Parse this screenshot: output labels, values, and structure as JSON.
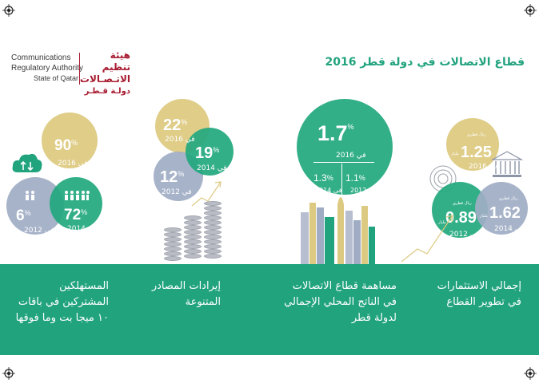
{
  "header": {
    "logo_en_line1": "Communications",
    "logo_en_line2": "Regulatory Authority",
    "logo_en_line3": "State of Qatar",
    "logo_ar_line1": "هيئة تنظيم",
    "logo_ar_line2": "الاتـصـالات",
    "logo_ar_line3": "دولـة قـطـر",
    "title": "قطاع الاتصالات في دولة قطر 2016"
  },
  "colors": {
    "green": "#21a37e",
    "gold": "#ddca82",
    "blue": "#a0acc4",
    "logo_red": "#a7192e"
  },
  "panel_consumers": {
    "icons": [
      "cloud-arrows-icon",
      "people-small-icon",
      "people-large-icon"
    ],
    "circles": [
      {
        "value": "90",
        "unit": "%",
        "year": "في 2016"
      },
      {
        "value": "6",
        "unit": "%",
        "year": "في 2012"
      },
      {
        "value": "72",
        "unit": "%",
        "year": "في 2014"
      }
    ],
    "caption_line1": "المستهلكين",
    "caption_line2": "المشتركين في باقات",
    "caption_line3": "١٠ ميجا بت وما فوقها"
  },
  "panel_revenue": {
    "icons": [
      "coin-stacks-icon",
      "trend-arrow-icon"
    ],
    "circles": [
      {
        "value": "22",
        "unit": "%",
        "year": "في 2016"
      },
      {
        "value": "19",
        "unit": "%",
        "year": "في 2014"
      },
      {
        "value": "12",
        "unit": "%",
        "year": "في 2012"
      }
    ],
    "caption_line1": "إيرادات المصادر",
    "caption_line2": "المتنوعة"
  },
  "panel_gdp": {
    "icons": [
      "skyline-icon"
    ],
    "main": {
      "value": "1.7",
      "unit": "%",
      "year": "في 2016"
    },
    "sub": [
      {
        "value": "1.3",
        "unit": "%",
        "year": "في 2014"
      },
      {
        "value": "1.1",
        "unit": "%",
        "year": "في 2012"
      }
    ],
    "caption_line1": "مساهمة قطاع الاتصالات",
    "caption_line2": "في الناتج المحلي الإجمالي",
    "caption_line3": "لدولة قطر"
  },
  "panel_investment": {
    "icons": [
      "bank-building-icon",
      "target-rings-icon",
      "trend-arrow-icon"
    ],
    "circles": [
      {
        "value": "1.25",
        "prefix": "ريال قطري",
        "suffix": "مليار",
        "year": "في 2016"
      },
      {
        "value": "0.89",
        "prefix": "ريال قطري",
        "suffix": "مليار",
        "year": "في 2012"
      },
      {
        "value": "1.62",
        "prefix": "ريال قطري",
        "suffix": "مليار",
        "year": "في 2014"
      }
    ],
    "caption_line1": "إجمالي الاستثمارات",
    "caption_line2": "في تطوير القطاع"
  }
}
